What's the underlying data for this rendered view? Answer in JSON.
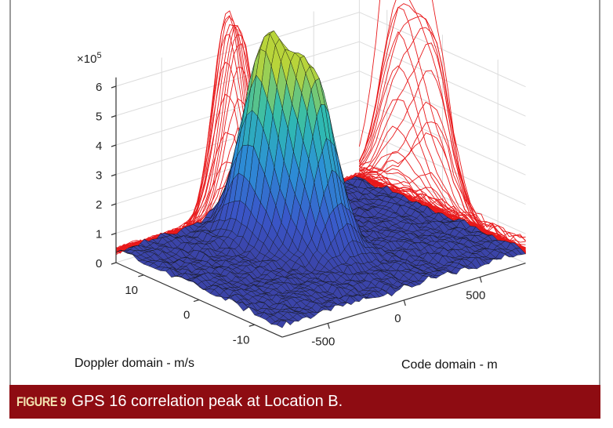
{
  "caption": {
    "label": "FIGURE 9",
    "text": "GPS 16 correlation peak at Location B."
  },
  "chart_data": {
    "type": "surface",
    "title": "",
    "xlabel": "Code domain - m",
    "ylabel": "Doppler domain - m/s",
    "zlabel": "",
    "z_multiplier": "×10^5",
    "xlim": [
      -800,
      800
    ],
    "ylim": [
      -15,
      15
    ],
    "zlim": [
      0,
      6.5
    ],
    "xticks": [
      "-500",
      "0",
      "500"
    ],
    "yticks": [
      "10",
      "0",
      "-10"
    ],
    "zticks": [
      "0",
      "1",
      "2",
      "3",
      "4",
      "5",
      "6"
    ],
    "peaks": [
      {
        "code": -75,
        "doppler": 8,
        "z": 6.3
      },
      {
        "code": 15,
        "doppler": 1.7,
        "z": 5.5
      }
    ],
    "noise_floor": 0.4,
    "grid": true,
    "colormap": [
      "#3b3d9c",
      "#3a57c9",
      "#2c8fd6",
      "#2fbcb0",
      "#b8d43a"
    ],
    "projection_color": "#e8191b"
  }
}
